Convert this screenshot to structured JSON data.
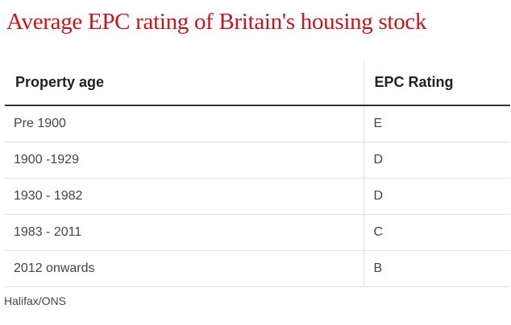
{
  "title": "Average EPC rating of Britain's housing stock",
  "table": {
    "headers": [
      "Property age",
      "EPC Rating"
    ],
    "rows": [
      [
        "Pre 1900",
        "E"
      ],
      [
        "1900 -1929",
        "D"
      ],
      [
        "1930 - 1982",
        "D"
      ],
      [
        "1983 - 2011",
        "C"
      ],
      [
        "2012 onwards",
        "B"
      ]
    ]
  },
  "source": "Halifax/ONS",
  "colors": {
    "title": "#c4161c",
    "header_rule": "#333333",
    "row_rule": "#e2e2e2"
  }
}
